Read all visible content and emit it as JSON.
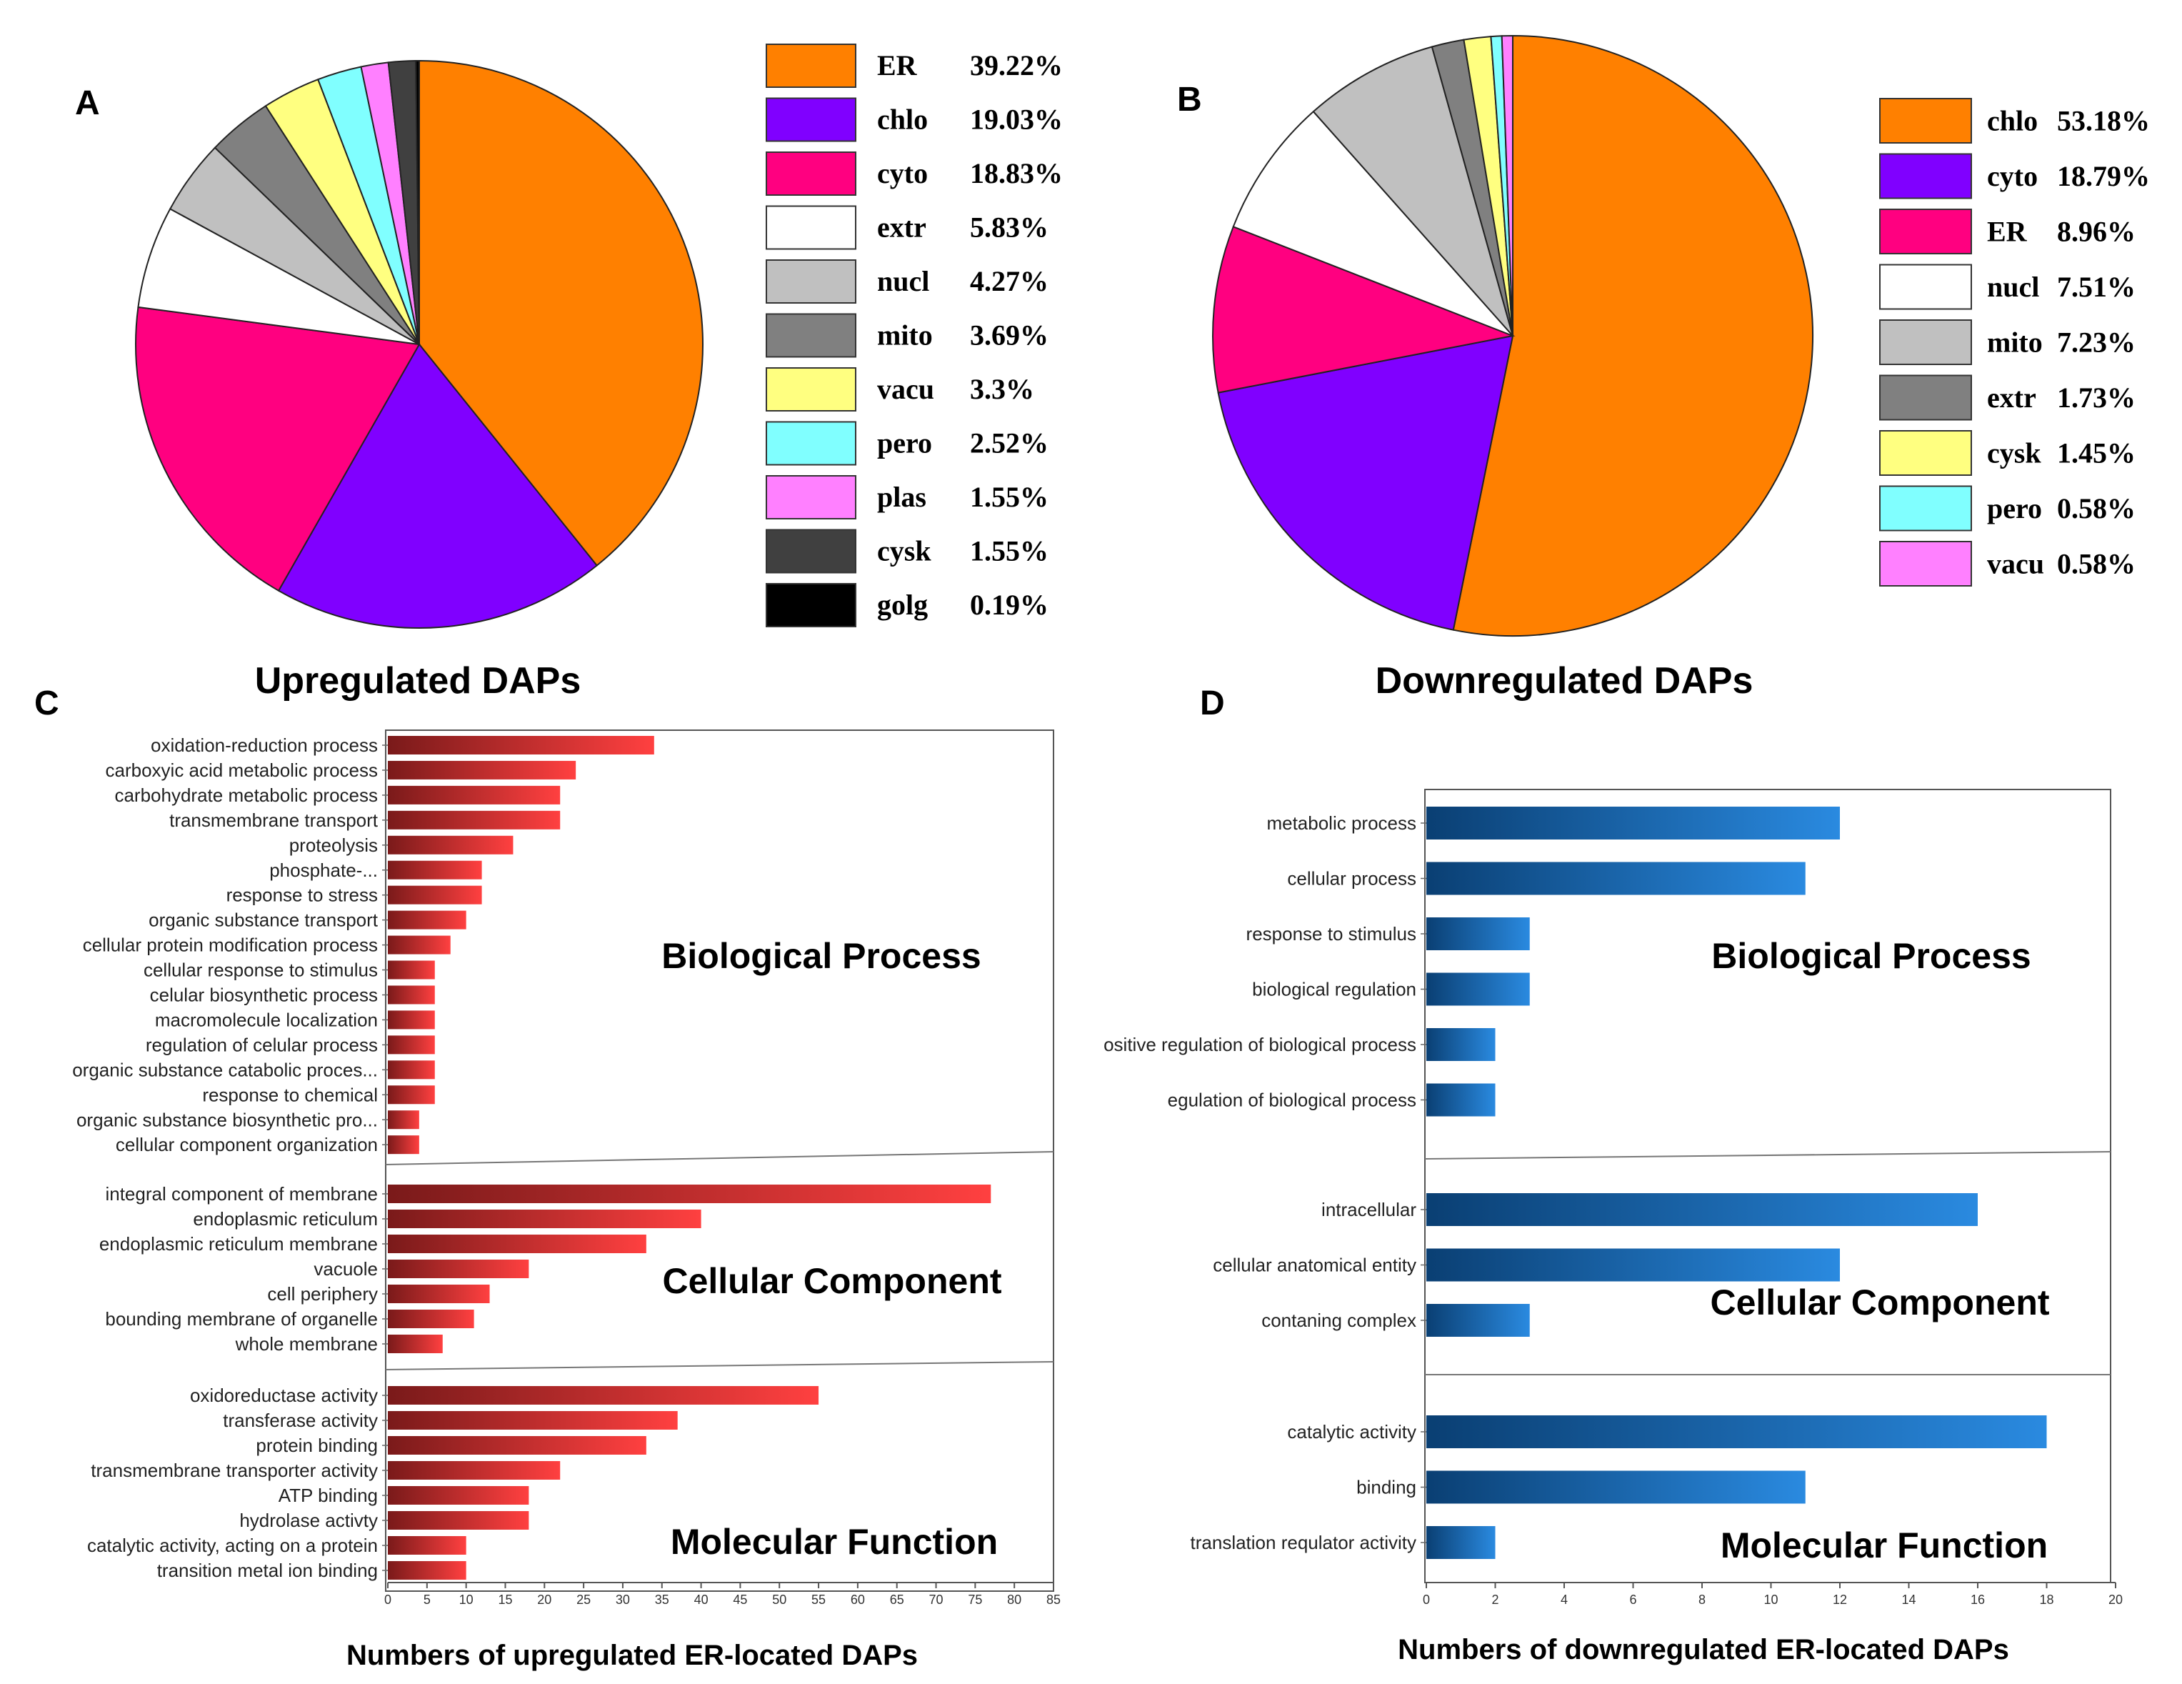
{
  "chart_data": [
    {
      "id": "A",
      "type": "pie",
      "panel_letter": "A",
      "title": "Upregulated DAPs",
      "slices": [
        {
          "label": "ER",
          "pct_label": "39.22%",
          "value": 39.22,
          "color": "#ff8000"
        },
        {
          "label": "chlo",
          "pct_label": "19.03%",
          "value": 19.03,
          "color": "#8000ff"
        },
        {
          "label": "cyto",
          "pct_label": "18.83%",
          "value": 18.83,
          "color": "#ff0080"
        },
        {
          "label": "extr",
          "pct_label": "5.83%",
          "value": 5.83,
          "color": "#ffffff"
        },
        {
          "label": "nucl",
          "pct_label": "4.27%",
          "value": 4.27,
          "color": "#c0c0c0"
        },
        {
          "label": "mito",
          "pct_label": "3.69%",
          "value": 3.69,
          "color": "#808080"
        },
        {
          "label": "vacu",
          "pct_label": "3.3%",
          "value": 3.3,
          "color": "#ffff80"
        },
        {
          "label": "pero",
          "pct_label": "2.52%",
          "value": 2.52,
          "color": "#80ffff"
        },
        {
          "label": "plas",
          "pct_label": "1.55%",
          "value": 1.55,
          "color": "#ff80ff"
        },
        {
          "label": "cysk",
          "pct_label": "1.55%",
          "value": 1.55,
          "color": "#404040"
        },
        {
          "label": "golg",
          "pct_label": "0.19%",
          "value": 0.19,
          "color": "#000000"
        }
      ]
    },
    {
      "id": "B",
      "type": "pie",
      "panel_letter": "B",
      "title": "Downregulated DAPs",
      "slices": [
        {
          "label": "chlo",
          "pct_label": "53.18%",
          "value": 53.18,
          "color": "#ff8000"
        },
        {
          "label": "cyto",
          "pct_label": "18.79%",
          "value": 18.79,
          "color": "#8000ff"
        },
        {
          "label": "ER",
          "pct_label": "8.96%",
          "value": 8.96,
          "color": "#ff0080"
        },
        {
          "label": "nucl",
          "pct_label": "7.51%",
          "value": 7.51,
          "color": "#ffffff"
        },
        {
          "label": "mito",
          "pct_label": "7.23%",
          "value": 7.23,
          "color": "#c0c0c0"
        },
        {
          "label": "extr",
          "pct_label": "1.73%",
          "value": 1.73,
          "color": "#808080"
        },
        {
          "label": "cysk",
          "pct_label": "1.45%",
          "value": 1.45,
          "color": "#ffff80"
        },
        {
          "label": "pero",
          "pct_label": "0.58%",
          "value": 0.58,
          "color": "#80ffff"
        },
        {
          "label": "vacu",
          "pct_label": "0.58%",
          "value": 0.58,
          "color": "#ff80ff"
        }
      ]
    },
    {
      "id": "C",
      "type": "bar",
      "orientation": "horizontal",
      "panel_letter": "C",
      "xlabel": "Numbers of upregulated ER-located DAPs",
      "xlim": [
        0,
        85
      ],
      "xticks": [
        0,
        5,
        10,
        15,
        20,
        25,
        30,
        35,
        40,
        45,
        50,
        55,
        60,
        65,
        70,
        75,
        80,
        85
      ],
      "bar_color_dark": "#7a1a1a",
      "bar_color_light": "#ff4040",
      "groups": [
        {
          "name": "Biological Process",
          "categories": [
            "oxidation-reduction process",
            "carboxyic acid metabolic process",
            "carbohydrate metabolic process",
            "transmembrane transport",
            "proteolysis",
            "phosphate-...",
            "response to stress",
            "organic substance transport",
            "cellular protein modification process",
            "cellular response to stimulus",
            "celular biosynthetic process",
            "macromolecule localization",
            "regulation of celular process",
            "organic substance catabolic proces...",
            "response to chemical",
            "organic substance biosynthetic pro...",
            "cellular component organization"
          ],
          "values": [
            34,
            24,
            22,
            22,
            16,
            12,
            12,
            10,
            8,
            6,
            6,
            6,
            6,
            6,
            6,
            4,
            4
          ]
        },
        {
          "name": "Cellular Component",
          "categories": [
            "integral component of membrane",
            "endoplasmic reticulum",
            "endoplasmic reticulum membrane",
            "vacuole",
            "cell periphery",
            "bounding membrane of organelle",
            "whole membrane"
          ],
          "values": [
            77,
            40,
            33,
            18,
            13,
            11,
            7
          ]
        },
        {
          "name": "Molecular Function",
          "categories": [
            "oxidoreductase activity",
            "transferase activity",
            "protein binding",
            "transmembrane transporter activity",
            "ATP binding",
            "hydrolase activty",
            "catalytic activity, acting on a protein",
            "transition metal ion binding"
          ],
          "values": [
            55,
            37,
            33,
            22,
            18,
            18,
            10,
            10
          ]
        }
      ]
    },
    {
      "id": "D",
      "type": "bar",
      "orientation": "horizontal",
      "panel_letter": "D",
      "xlabel": "Numbers of downregulated ER-located DAPs",
      "xlim": [
        0,
        20
      ],
      "xticks": [
        0,
        2,
        4,
        6,
        8,
        10,
        12,
        14,
        16,
        18,
        20
      ],
      "bar_color_dark": "#0a3f73",
      "bar_color_light": "#2a8ae0",
      "groups": [
        {
          "name": "Biological Process",
          "categories": [
            "metabolic process",
            "cellular process",
            "response to stimulus",
            "biological regulation",
            "ositive regulation of biological process",
            "egulation of biological process"
          ],
          "values": [
            12,
            11,
            3,
            3,
            2,
            2
          ]
        },
        {
          "name": "Cellular Component",
          "categories": [
            "intracellular",
            "cellular anatomical entity",
            "contaning complex"
          ],
          "values": [
            16,
            12,
            3
          ]
        },
        {
          "name": "Molecular Function",
          "categories": [
            "catalytic activity",
            "binding",
            "translation requlator activity"
          ],
          "values": [
            18,
            11,
            2
          ]
        }
      ]
    }
  ]
}
